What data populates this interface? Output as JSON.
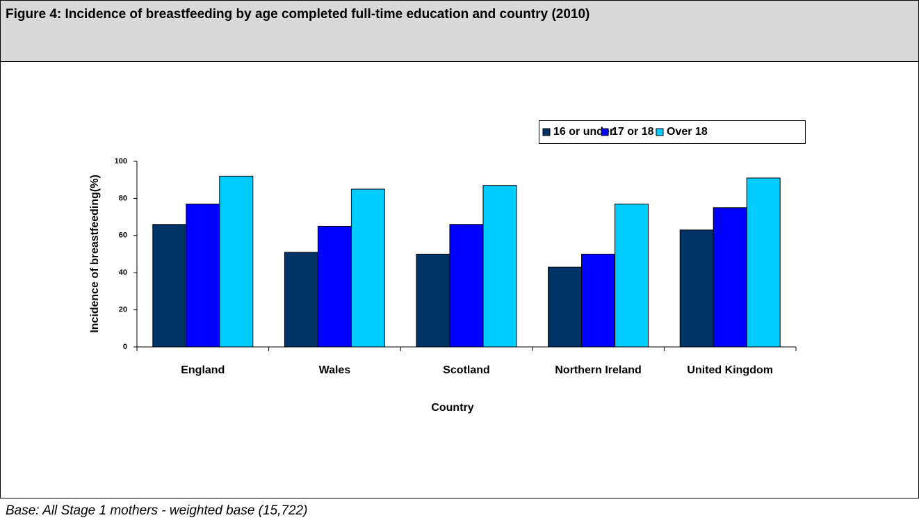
{
  "chart_data": {
    "type": "bar",
    "title": "Figure 4: Incidence of breastfeeding by age completed full-time education and country (2010)",
    "y_label": "Incidence of breastfeeding(%)",
    "x_label": "Country",
    "categories": [
      "England",
      "Wales",
      "Scotland",
      "Northern Ireland",
      "United Kingdom"
    ],
    "series": [
      {
        "name": "16 or under",
        "color": "#003366",
        "values": [
          66,
          51,
          50,
          43,
          63
        ]
      },
      {
        "name": "17 or 18",
        "color": "#0000ff",
        "values": [
          77,
          65,
          66,
          50,
          75
        ]
      },
      {
        "name": "Over 18",
        "color": "#00ccff",
        "values": [
          92,
          85,
          87,
          77,
          91
        ]
      }
    ],
    "ylim": [
      0,
      100
    ],
    "yticks": [
      0,
      20,
      40,
      60,
      80,
      100
    ],
    "grid": false
  },
  "footnote": "Base: All Stage 1 mothers - weighted base (15,722)"
}
